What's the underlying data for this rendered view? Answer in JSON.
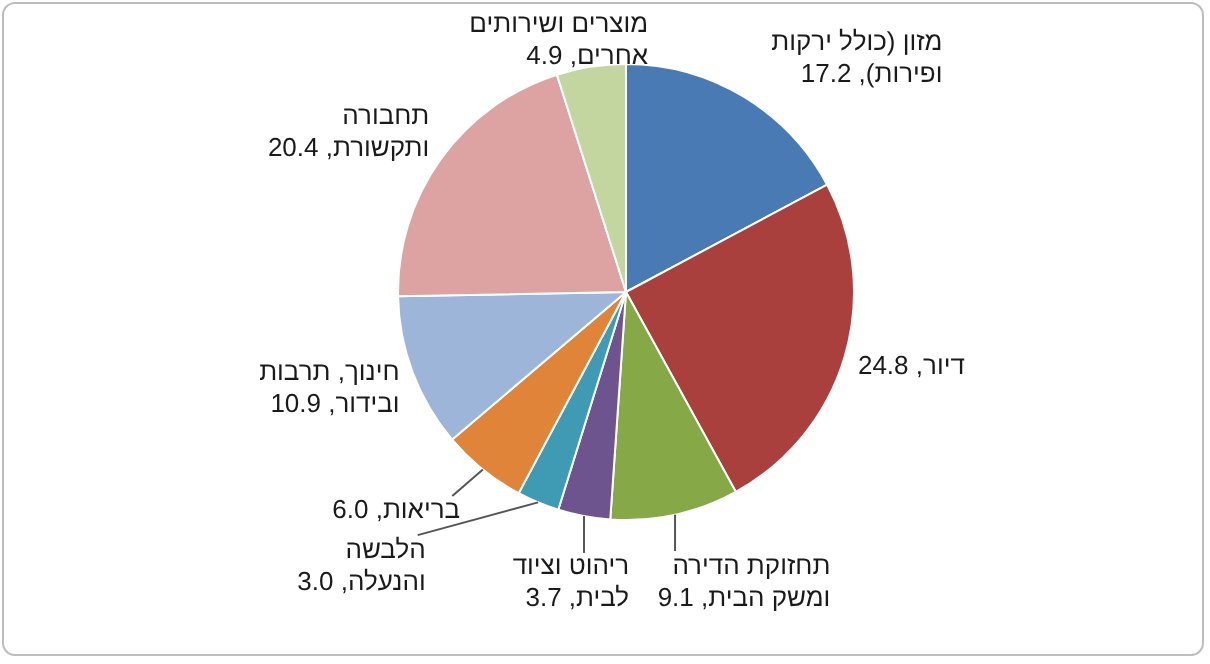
{
  "chart_data": {
    "type": "pie",
    "categories": [
      "מזון (כולל ירקות ופירות)",
      "דיור",
      "תחזוקת הדירה ומשק הבית",
      "ריהוט וציוד לבית",
      "הלבשה והנעלה",
      "בריאות",
      "חינוך, תרבות ובידור",
      "תחבורה ותקשורת",
      "מוצרים ושירותים אחרים"
    ],
    "values": [
      17.2,
      24.8,
      9.1,
      3.7,
      3.0,
      6.0,
      10.9,
      20.4,
      4.9
    ],
    "value_labels": [
      "17.2",
      "24.8",
      "9.1",
      "3.7",
      "3.0",
      "6.0",
      "10.9",
      "20.4",
      "4.9"
    ],
    "colors": [
      "#4a7ab4",
      "#a9403d",
      "#86a846",
      "#6e548f",
      "#3e9bb3",
      "#e0843a",
      "#9db5d9",
      "#dca3a2",
      "#c3d6a0"
    ],
    "legend": false
  }
}
